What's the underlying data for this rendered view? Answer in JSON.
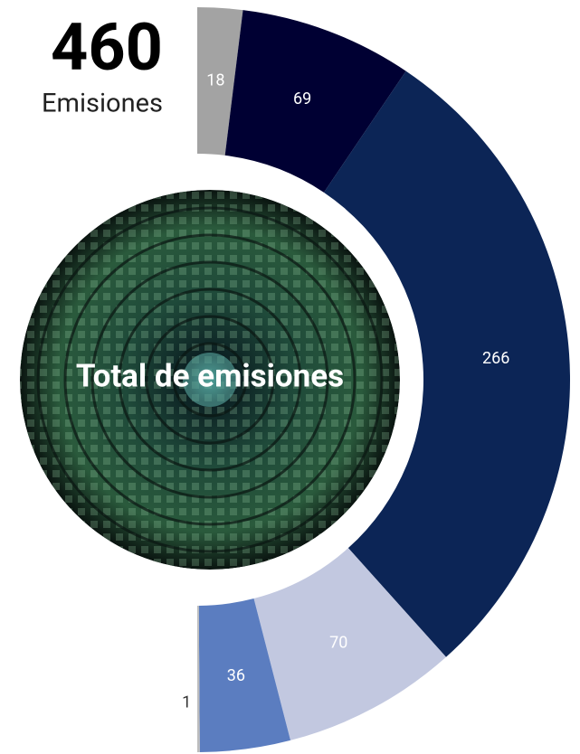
{
  "chart_data": {
    "type": "half-donut",
    "total": 460,
    "total_label": "Emisiones",
    "center_label": "Total de emisiones",
    "values": [
      18,
      69,
      266,
      70,
      36,
      1
    ],
    "colors": [
      "#a3a3a3",
      "#000033",
      "#0c2556",
      "#c2c8e0",
      "#5b7dc0",
      "#bdbdbd"
    ],
    "label_colors": [
      "#ffffff",
      "#ffffff",
      "#ffffff",
      "#ffffff",
      "#ffffff",
      "#333333"
    ]
  }
}
